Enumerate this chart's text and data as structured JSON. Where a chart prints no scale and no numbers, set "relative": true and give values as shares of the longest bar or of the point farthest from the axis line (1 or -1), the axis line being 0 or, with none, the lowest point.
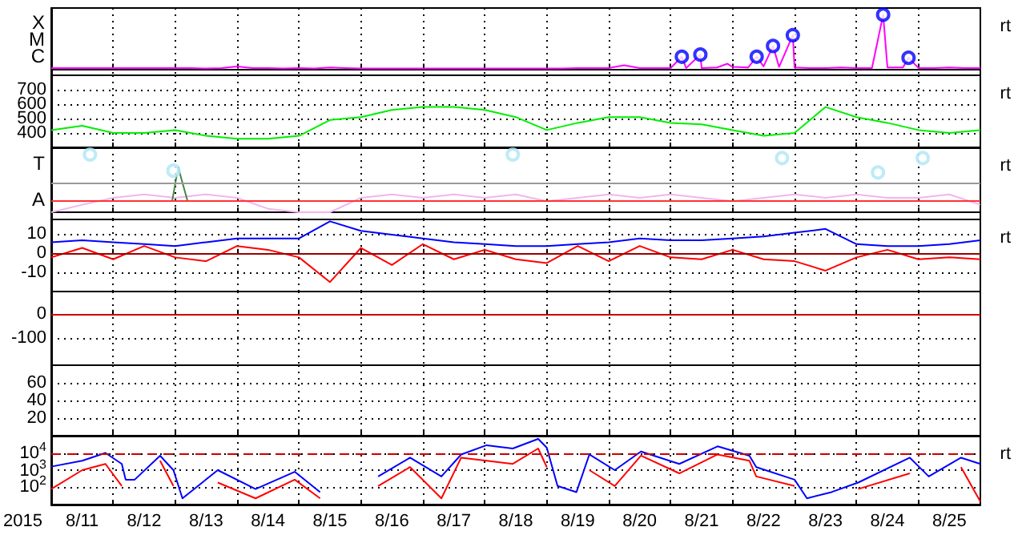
{
  "chart_data": [
    {
      "type": "line",
      "relative": true,
      "grid": "x",
      "marker": "none",
      "tick_labels": false,
      "annotations": [
        "rt",
        "X",
        "M",
        "C"
      ],
      "xlim": [
        "2015-08-11T00:00",
        "2015-08-26T00:00"
      ],
      "xticks": [
        {
          "value": "2015-08-12T00:00",
          "label": null
        },
        {
          "value": "2015-08-13T00:00",
          "label": null
        },
        {
          "value": "2015-08-14T00:00",
          "label": null
        },
        {
          "value": "2015-08-15T00:00",
          "label": null
        },
        {
          "value": "2015-08-16T00:00",
          "label": null
        },
        {
          "value": "2015-08-17T00:00",
          "label": null
        },
        {
          "value": "2015-08-18T00:00",
          "label": null
        },
        {
          "value": "2015-08-19T00:00",
          "label": null
        },
        {
          "value": "2015-08-20T00:00",
          "label": null
        },
        {
          "value": "2015-08-21T00:00",
          "label": null
        },
        {
          "value": "2015-08-22T00:00",
          "label": null
        },
        {
          "value": "2015-08-23T00:00",
          "label": null
        },
        {
          "value": "2015-08-24T00:00",
          "label": null
        },
        {
          "value": "2015-08-25T00:00",
          "label": null
        }
      ],
      "series": [
        {
          "color": "#ff00ff",
          "x": [
            "2015-08-11T00:00",
            "2015-08-11T06:00",
            "2015-08-11T12:00",
            "2015-08-11T18:00",
            "2015-08-12T00:00",
            "2015-08-12T06:00",
            "2015-08-12T12:00",
            "2015-08-12T18:00",
            "2015-08-13T00:00",
            "2015-08-13T06:00",
            "2015-08-13T12:00",
            "2015-08-13T18:00",
            "2015-08-14T00:00",
            "2015-08-14T06:00",
            "2015-08-14T12:00",
            "2015-08-14T18:00",
            "2015-08-15T00:00",
            "2015-08-15T06:00",
            "2015-08-15T12:00",
            "2015-08-15T18:00",
            "2015-08-16T00:00",
            "2015-08-16T06:00",
            "2015-08-16T12:00",
            "2015-08-16T18:00",
            "2015-08-17T00:00",
            "2015-08-17T06:00",
            "2015-08-17T12:00",
            "2015-08-17T18:00",
            "2015-08-18T00:00",
            "2015-08-18T06:00",
            "2015-08-18T12:00",
            "2015-08-18T18:00",
            "2015-08-19T00:00",
            "2015-08-19T06:00",
            "2015-08-19T12:00",
            "2015-08-19T18:00",
            "2015-08-20T00:00",
            "2015-08-20T06:00",
            "2015-08-20T12:00",
            "2015-08-20T18:00",
            "2015-08-21T00:00",
            "2015-08-21T04:20",
            "2015-08-21T06:00",
            "2015-08-21T11:30",
            "2015-08-21T12:00",
            "2015-08-21T18:00",
            "2015-08-21T22:00",
            "2015-08-22T00:00",
            "2015-08-22T06:00",
            "2015-08-22T09:20",
            "2015-08-22T12:00",
            "2015-08-22T15:40",
            "2015-08-22T18:00",
            "2015-08-22T23:20",
            "2015-08-23T00:00",
            "2015-08-23T06:00",
            "2015-08-23T12:00",
            "2015-08-23T18:00",
            "2015-08-24T00:00",
            "2015-08-24T06:00",
            "2015-08-24T10:20",
            "2015-08-24T12:00",
            "2015-08-24T18:00",
            "2015-08-24T20:10",
            "2015-08-25T00:00",
            "2015-08-25T06:00",
            "2015-08-25T12:00",
            "2015-08-25T18:00",
            "2015-08-26T00:00"
          ],
          "values": [
            0.01,
            0.01,
            0.01,
            0.01,
            0.01,
            0.01,
            0.01,
            0.01,
            0.01,
            0.01,
            0,
            0.01,
            0.04,
            0.01,
            0.01,
            0,
            0.01,
            0,
            0.02,
            0.01,
            0,
            0,
            0,
            0,
            0,
            0,
            0,
            0,
            0,
            0,
            0,
            0,
            0,
            0,
            0.01,
            0.01,
            0.01,
            0.06,
            0.01,
            0.01,
            0.01,
            0.22,
            0.01,
            0.26,
            0.01,
            0.02,
            0.09,
            0.03,
            0.02,
            0.22,
            0.04,
            0.42,
            0.03,
            0.62,
            0.02,
            0.01,
            0.01,
            0.02,
            0.01,
            0.01,
            1,
            0.02,
            0.02,
            0.2,
            0.01,
            0.01,
            0.02,
            0.01,
            0.01
          ]
        },
        {
          "type": "scatter",
          "marker": "circle",
          "color": "#0000ff",
          "x": [
            "2015-08-21T04:20",
            "2015-08-21T11:30",
            "2015-08-22T09:20",
            "2015-08-22T15:40",
            "2015-08-22T23:20",
            "2015-08-24T10:20",
            "2015-08-24T20:10"
          ],
          "values": [
            0.22,
            0.26,
            0.22,
            0.42,
            0.62,
            1,
            0.2
          ]
        }
      ]
    },
    {
      "type": "line",
      "grid": true,
      "marker": "none",
      "tick_labels": "y",
      "annotations": [
        "rt"
      ],
      "xlim": [
        "2015-08-11T00:00",
        "2015-08-26T00:00"
      ],
      "xticks": [
        {
          "value": "2015-08-12T00:00",
          "label": null
        },
        {
          "value": "2015-08-13T00:00",
          "label": null
        },
        {
          "value": "2015-08-14T00:00",
          "label": null
        },
        {
          "value": "2015-08-15T00:00",
          "label": null
        },
        {
          "value": "2015-08-16T00:00",
          "label": null
        },
        {
          "value": "2015-08-17T00:00",
          "label": null
        },
        {
          "value": "2015-08-18T00:00",
          "label": null
        },
        {
          "value": "2015-08-19T00:00",
          "label": null
        },
        {
          "value": "2015-08-20T00:00",
          "label": null
        },
        {
          "value": "2015-08-21T00:00",
          "label": null
        },
        {
          "value": "2015-08-22T00:00",
          "label": null
        },
        {
          "value": "2015-08-23T00:00",
          "label": null
        },
        {
          "value": "2015-08-24T00:00",
          "label": null
        },
        {
          "value": "2015-08-25T00:00",
          "label": null
        }
      ],
      "ylim": [
        300,
        800
      ],
      "yticks": [
        400,
        500,
        600,
        700
      ],
      "x": [
        "2015-08-11T00:00",
        "2015-08-11T12:00",
        "2015-08-12T00:00",
        "2015-08-12T12:00",
        "2015-08-13T00:00",
        "2015-08-13T12:00",
        "2015-08-14T00:00",
        "2015-08-14T12:00",
        "2015-08-15T00:00",
        "2015-08-15T12:00",
        "2015-08-16T00:00",
        "2015-08-16T12:00",
        "2015-08-17T00:00",
        "2015-08-17T12:00",
        "2015-08-18T00:00",
        "2015-08-18T12:00",
        "2015-08-19T00:00",
        "2015-08-19T12:00",
        "2015-08-20T00:00",
        "2015-08-20T12:00",
        "2015-08-21T00:00",
        "2015-08-21T12:00",
        "2015-08-22T00:00",
        "2015-08-22T12:00",
        "2015-08-23T00:00",
        "2015-08-23T12:00",
        "2015-08-24T00:00",
        "2015-08-24T12:00",
        "2015-08-25T00:00",
        "2015-08-25T12:00",
        "2015-08-26T00:00"
      ],
      "series": [
        {
          "color": "#00ee00",
          "values": [
            420,
            450,
            400,
            400,
            420,
            380,
            360,
            360,
            380,
            490,
            510,
            560,
            580,
            580,
            560,
            510,
            420,
            470,
            510,
            510,
            470,
            460,
            420,
            380,
            400,
            580,
            510,
            470,
            420,
            400,
            420
          ]
        }
      ]
    },
    {
      "type": "line",
      "relative": true,
      "grid": "x",
      "marker": "none",
      "tick_labels": false,
      "annotations": [
        "rt",
        "T",
        "A"
      ],
      "xlim": [
        "2015-08-11T00:00",
        "2015-08-26T00:00"
      ],
      "xticks": [
        {
          "value": "2015-08-12T00:00",
          "label": null
        },
        {
          "value": "2015-08-13T00:00",
          "label": null
        },
        {
          "value": "2015-08-14T00:00",
          "label": null
        },
        {
          "value": "2015-08-15T00:00",
          "label": null
        },
        {
          "value": "2015-08-16T00:00",
          "label": null
        },
        {
          "value": "2015-08-17T00:00",
          "label": null
        },
        {
          "value": "2015-08-18T00:00",
          "label": null
        },
        {
          "value": "2015-08-19T00:00",
          "label": null
        },
        {
          "value": "2015-08-20T00:00",
          "label": null
        },
        {
          "value": "2015-08-21T00:00",
          "label": null
        },
        {
          "value": "2015-08-22T00:00",
          "label": null
        },
        {
          "value": "2015-08-23T00:00",
          "label": null
        },
        {
          "value": "2015-08-24T00:00",
          "label": null
        },
        {
          "value": "2015-08-25T00:00",
          "label": null
        }
      ],
      "ref_lines": [
        {
          "axis": "y",
          "value": 0.5,
          "color": "#999999"
        },
        {
          "axis": "y",
          "value": 0.19,
          "color": "#ff3333"
        }
      ],
      "x": [
        "2015-08-11T00:00",
        "2015-08-11T12:00",
        "2015-08-12T00:00",
        "2015-08-12T12:00",
        "2015-08-13T00:00",
        "2015-08-13T12:00",
        "2015-08-14T00:00",
        "2015-08-14T12:00",
        "2015-08-15T00:00",
        "2015-08-15T12:00",
        "2015-08-16T00:00",
        "2015-08-16T12:00",
        "2015-08-17T00:00",
        "2015-08-17T12:00",
        "2015-08-18T00:00",
        "2015-08-18T12:00",
        "2015-08-19T00:00",
        "2015-08-19T12:00",
        "2015-08-20T00:00",
        "2015-08-20T12:00",
        "2015-08-21T00:00",
        "2015-08-21T12:00",
        "2015-08-22T00:00",
        "2015-08-22T12:00",
        "2015-08-23T00:00",
        "2015-08-23T12:00",
        "2015-08-24T00:00",
        "2015-08-24T12:00",
        "2015-08-25T00:00",
        "2015-08-25T12:00",
        "2015-08-26T00:00"
      ],
      "series": [
        {
          "color": "#f4b4ee",
          "values": [
            0,
            0.13,
            0.25,
            0.31,
            0.25,
            0.31,
            0.25,
            0.06,
            0,
            0,
            0.25,
            0.31,
            0.25,
            0.31,
            0.25,
            0.31,
            0.19,
            0.25,
            0.31,
            0.25,
            0.31,
            0.25,
            0.19,
            0.25,
            0.31,
            0.25,
            0.31,
            0.25,
            0.25,
            0.31,
            0.13
          ]
        },
        {
          "type": "scatter",
          "marker": "circle",
          "color": "#aee6f5",
          "x": [
            "2015-08-11T15:00",
            "2015-08-12T23:20",
            "2015-08-18T10:50",
            "2015-08-22T19:10",
            "2015-08-24T08:20",
            "2015-08-25T01:40"
          ],
          "values": [
            1,
            0.72,
            1,
            0.94,
            0.69,
            0.94
          ]
        },
        {
          "color": "#448844",
          "x": [
            "2015-08-12T22:50",
            "2015-08-13T01:10",
            "2015-08-13T04:50"
          ],
          "values": [
            0.19,
            0.78,
            0.19
          ]
        }
      ]
    },
    {
      "type": "line",
      "grid": true,
      "marker": "none",
      "tick_labels": "y",
      "annotations": [
        "rt"
      ],
      "xlim": [
        "2015-08-11T00:00",
        "2015-08-26T00:00"
      ],
      "xticks": [
        {
          "value": "2015-08-12T00:00",
          "label": null
        },
        {
          "value": "2015-08-13T00:00",
          "label": null
        },
        {
          "value": "2015-08-14T00:00",
          "label": null
        },
        {
          "value": "2015-08-15T00:00",
          "label": null
        },
        {
          "value": "2015-08-16T00:00",
          "label": null
        },
        {
          "value": "2015-08-17T00:00",
          "label": null
        },
        {
          "value": "2015-08-18T00:00",
          "label": null
        },
        {
          "value": "2015-08-19T00:00",
          "label": null
        },
        {
          "value": "2015-08-20T00:00",
          "label": null
        },
        {
          "value": "2015-08-21T00:00",
          "label": null
        },
        {
          "value": "2015-08-22T00:00",
          "label": null
        },
        {
          "value": "2015-08-23T00:00",
          "label": null
        },
        {
          "value": "2015-08-24T00:00",
          "label": null
        },
        {
          "value": "2015-08-25T00:00",
          "label": null
        }
      ],
      "ylim": [
        -20,
        18
      ],
      "yticks": [
        10,
        0,
        -10
      ],
      "ref_lines": [
        {
          "axis": "y",
          "value": 0,
          "color": "#990000"
        }
      ],
      "x": [
        "2015-08-11T00:00",
        "2015-08-11T12:00",
        "2015-08-12T00:00",
        "2015-08-12T12:00",
        "2015-08-13T00:00",
        "2015-08-13T12:00",
        "2015-08-14T00:00",
        "2015-08-14T12:00",
        "2015-08-15T00:00",
        "2015-08-15T12:00",
        "2015-08-16T00:00",
        "2015-08-16T12:00",
        "2015-08-17T00:00",
        "2015-08-17T12:00",
        "2015-08-18T00:00",
        "2015-08-18T12:00",
        "2015-08-19T00:00",
        "2015-08-19T12:00",
        "2015-08-20T00:00",
        "2015-08-20T12:00",
        "2015-08-21T00:00",
        "2015-08-21T12:00",
        "2015-08-22T00:00",
        "2015-08-22T12:00",
        "2015-08-23T00:00",
        "2015-08-23T12:00",
        "2015-08-24T00:00",
        "2015-08-24T12:00",
        "2015-08-25T00:00",
        "2015-08-25T12:00",
        "2015-08-26T00:00"
      ],
      "series": [
        {
          "color": "#0000ff",
          "values": [
            6,
            7,
            6,
            5,
            4,
            6,
            8,
            8,
            8,
            17,
            12,
            10,
            8,
            6,
            5,
            4,
            4,
            5,
            6,
            8,
            7,
            7,
            8,
            9,
            11,
            13,
            5,
            4,
            4,
            5,
            7
          ]
        },
        {
          "color": "#ff0000",
          "values": [
            -2,
            3,
            -3,
            4,
            -2,
            -4,
            4,
            2,
            -2,
            -15,
            3,
            -6,
            5,
            -3,
            2,
            -3,
            -5,
            4,
            -4,
            4,
            -2,
            -3,
            2,
            -3,
            -4,
            -9,
            -2,
            2,
            -3,
            -2,
            -3
          ]
        }
      ]
    },
    {
      "type": "line",
      "grid": true,
      "tick_labels": "y",
      "xlim": [
        "2015-08-11T00:00",
        "2015-08-26T00:00"
      ],
      "xticks": [
        {
          "value": "2015-08-12T00:00",
          "label": null
        },
        {
          "value": "2015-08-13T00:00",
          "label": null
        },
        {
          "value": "2015-08-14T00:00",
          "label": null
        },
        {
          "value": "2015-08-15T00:00",
          "label": null
        },
        {
          "value": "2015-08-16T00:00",
          "label": null
        },
        {
          "value": "2015-08-17T00:00",
          "label": null
        },
        {
          "value": "2015-08-18T00:00",
          "label": null
        },
        {
          "value": "2015-08-19T00:00",
          "label": null
        },
        {
          "value": "2015-08-20T00:00",
          "label": null
        },
        {
          "value": "2015-08-21T00:00",
          "label": null
        },
        {
          "value": "2015-08-22T00:00",
          "label": null
        },
        {
          "value": "2015-08-23T00:00",
          "label": null
        },
        {
          "value": "2015-08-24T00:00",
          "label": null
        },
        {
          "value": "2015-08-25T00:00",
          "label": null
        }
      ],
      "ylim": [
        -210,
        95
      ],
      "yticks": [
        0,
        -100
      ],
      "ref_lines": [
        {
          "axis": "y",
          "value": 0,
          "color": "#cc0000"
        }
      ]
    },
    {
      "type": "line",
      "grid": true,
      "tick_labels": "y",
      "xlim": [
        "2015-08-11T00:00",
        "2015-08-26T00:00"
      ],
      "xticks": [
        {
          "value": "2015-08-12T00:00",
          "label": null
        },
        {
          "value": "2015-08-13T00:00",
          "label": null
        },
        {
          "value": "2015-08-14T00:00",
          "label": null
        },
        {
          "value": "2015-08-15T00:00",
          "label": null
        },
        {
          "value": "2015-08-16T00:00",
          "label": null
        },
        {
          "value": "2015-08-17T00:00",
          "label": null
        },
        {
          "value": "2015-08-18T00:00",
          "label": null
        },
        {
          "value": "2015-08-19T00:00",
          "label": null
        },
        {
          "value": "2015-08-20T00:00",
          "label": null
        },
        {
          "value": "2015-08-21T00:00",
          "label": null
        },
        {
          "value": "2015-08-22T00:00",
          "label": null
        },
        {
          "value": "2015-08-23T00:00",
          "label": null
        },
        {
          "value": "2015-08-24T00:00",
          "label": null
        },
        {
          "value": "2015-08-25T00:00",
          "label": null
        }
      ],
      "ylim": [
        0,
        80
      ],
      "yticks": [
        20,
        40,
        60
      ]
    },
    {
      "type": "line",
      "log": "y",
      "grid": true,
      "marker": "none",
      "annotations": [
        "rt"
      ],
      "xlabel": "2015",
      "xlim": [
        "2015-08-11T00:00",
        "2015-08-26T00:00"
      ],
      "xticks": [
        {
          "value": "2015-08-11T12:00",
          "label": "8/11"
        },
        {
          "value": "2015-08-12T00:00",
          "label": null
        },
        {
          "value": "2015-08-12T12:00",
          "label": "8/12"
        },
        {
          "value": "2015-08-13T00:00",
          "label": null
        },
        {
          "value": "2015-08-13T12:00",
          "label": "8/13"
        },
        {
          "value": "2015-08-14T00:00",
          "label": null
        },
        {
          "value": "2015-08-14T12:00",
          "label": "8/14"
        },
        {
          "value": "2015-08-15T00:00",
          "label": null
        },
        {
          "value": "2015-08-15T12:00",
          "label": "8/15"
        },
        {
          "value": "2015-08-16T00:00",
          "label": null
        },
        {
          "value": "2015-08-16T12:00",
          "label": "8/16"
        },
        {
          "value": "2015-08-17T00:00",
          "label": null
        },
        {
          "value": "2015-08-17T12:00",
          "label": "8/17"
        },
        {
          "value": "2015-08-18T00:00",
          "label": null
        },
        {
          "value": "2015-08-18T12:00",
          "label": "8/18"
        },
        {
          "value": "2015-08-19T00:00",
          "label": null
        },
        {
          "value": "2015-08-19T12:00",
          "label": "8/19"
        },
        {
          "value": "2015-08-20T00:00",
          "label": null
        },
        {
          "value": "2015-08-20T12:00",
          "label": "8/20"
        },
        {
          "value": "2015-08-21T00:00",
          "label": null
        },
        {
          "value": "2015-08-21T12:00",
          "label": "8/21"
        },
        {
          "value": "2015-08-22T00:00",
          "label": null
        },
        {
          "value": "2015-08-22T12:00",
          "label": "8/22"
        },
        {
          "value": "2015-08-23T00:00",
          "label": null
        },
        {
          "value": "2015-08-23T12:00",
          "label": "8/23"
        },
        {
          "value": "2015-08-24T00:00",
          "label": null
        },
        {
          "value": "2015-08-24T12:00",
          "label": "8/24"
        },
        {
          "value": "2015-08-25T00:00",
          "label": null
        },
        {
          "value": "2015-08-25T12:00",
          "label": "8/25"
        }
      ],
      "ylim": [
        10,
        100000
      ],
      "yticks": [
        {
          "value": 10000,
          "label": "10$^{4}$"
        },
        {
          "value": 1000,
          "label": "10$^{3}$"
        },
        {
          "value": 100,
          "label": "10$^{2}$"
        }
      ],
      "ref_lines": [
        {
          "axis": "y",
          "value": 10000,
          "color": "#cc0000",
          "line_style": "dashed"
        }
      ],
      "x": [
        "2015-08-11T00:00",
        "2015-08-11T12:00",
        "2015-08-11T21:00",
        "2015-08-12T03:20",
        "2015-08-12T04:50",
        "2015-08-12T08:20",
        "2015-08-12T18:10",
        "2015-08-12T23:20",
        "2015-08-13T02:50",
        "2015-08-13T16:30",
        "2015-08-14T07:10",
        "2015-08-14T22:20",
        "2015-08-15T08:10",
        "2015-08-15T18:10",
        "2015-08-16T00:00",
        "2015-08-16T06:40",
        "2015-08-16T19:00",
        "2015-08-17T07:10",
        "2015-08-17T14:50",
        "2015-08-18T00:40",
        "2015-08-18T10:50",
        "2015-08-18T20:40",
        "2015-08-19T00:00",
        "2015-08-19T04:10",
        "2015-08-19T11:30",
        "2015-08-19T16:30",
        "2015-08-20T02:20",
        "2015-08-20T12:30",
        "2015-08-21T03:20",
        "2015-08-21T18:10",
        "2015-08-22T06:30",
        "2015-08-22T09:10",
        "2015-08-23T00:00",
        "2015-08-23T04:50",
        "2015-08-23T14:20",
        "2015-08-24T00:40",
        "2015-08-24T20:40",
        "2015-08-25T04:00",
        "2015-08-25T16:30",
        "2015-08-26T00:00"
      ],
      "series": [
        {
          "color": "#0000ff",
          "values": [
            1600,
            3500,
            10000,
            2300,
            280,
            280,
            6900,
            1000,
            23,
            1000,
            80,
            800,
            53,
            null,
            null,
            430,
            5300,
            430,
            8100,
            28000,
            18000,
            65000,
            20000,
            120,
            53,
            8100,
            1000,
            12000,
            2300,
            24000,
            6900,
            1500,
            280,
            23,
            53,
            190,
            5300,
            430,
            5300,
            2300
          ]
        },
        {
          "color": "#ff0000",
          "values": [
            80,
            1000,
            2300,
            120,
            null,
            null,
            3500,
            120,
            null,
            190,
            23,
            280,
            23,
            null,
            null,
            120,
            1500,
            23,
            5300,
            3500,
            2300,
            18000,
            1500,
            null,
            null,
            1000,
            120,
            6900,
            650,
            8100,
            3500,
            430,
            120,
            null,
            null,
            80,
            650,
            null,
            1500,
            15
          ]
        }
      ]
    }
  ]
}
